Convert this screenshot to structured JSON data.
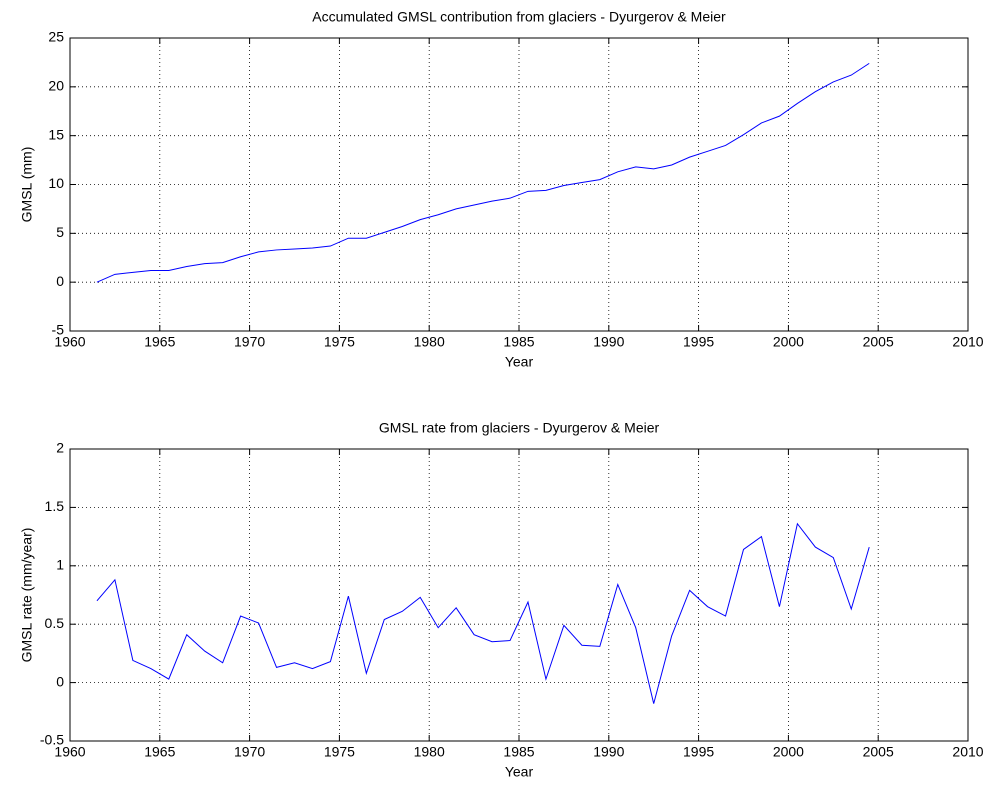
{
  "chart_data": [
    {
      "type": "line",
      "title": "Accumulated GMSL contribution from glaciers - Dyurgerov & Meier",
      "xlabel": "Year",
      "ylabel": "GMSL (mm)",
      "x": [
        1961.5,
        1962.5,
        1963.5,
        1964.5,
        1965.5,
        1966.5,
        1967.5,
        1968.5,
        1969.5,
        1970.5,
        1971.5,
        1972.5,
        1973.5,
        1974.5,
        1975.5,
        1976.5,
        1977.5,
        1978.5,
        1979.5,
        1980.5,
        1981.5,
        1982.5,
        1983.5,
        1984.5,
        1985.5,
        1986.5,
        1987.5,
        1988.5,
        1989.5,
        1990.5,
        1991.5,
        1992.5,
        1993.5,
        1994.5,
        1995.5,
        1996.5,
        1997.5,
        1998.5,
        1999.5,
        2000.5,
        2001.5,
        2002.5,
        2003.5,
        2004.5
      ],
      "series": [
        {
          "color": "#0000ff",
          "values": [
            0,
            0.8,
            1.0,
            1.2,
            1.2,
            1.6,
            1.9,
            2.0,
            2.6,
            3.1,
            3.3,
            3.4,
            3.5,
            3.7,
            4.5,
            4.5,
            5.1,
            5.7,
            6.4,
            6.9,
            7.5,
            7.9,
            8.3,
            8.6,
            9.3,
            9.4,
            9.9,
            10.2,
            10.5,
            11.3,
            11.8,
            11.6,
            12.0,
            12.8,
            13.4,
            14.0,
            15.1,
            16.3,
            17.0,
            18.3,
            19.5,
            20.5,
            21.2,
            22.4
          ]
        }
      ],
      "xlim": [
        1960,
        2010
      ],
      "xticks": [
        1960,
        1965,
        1970,
        1975,
        1980,
        1985,
        1990,
        1995,
        2000,
        2005,
        2010
      ],
      "ylim": [
        -5,
        25
      ],
      "yticks": [
        -5,
        0,
        5,
        10,
        15,
        20,
        25
      ],
      "grid": true
    },
    {
      "type": "line",
      "title": "GMSL rate from glaciers - Dyurgerov & Meier",
      "xlabel": "Year",
      "ylabel": "GMSL rate (mm/year)",
      "x": [
        1961.5,
        1962.5,
        1963.5,
        1964.5,
        1965.5,
        1966.5,
        1967.5,
        1968.5,
        1969.5,
        1970.5,
        1971.5,
        1972.5,
        1973.5,
        1974.5,
        1975.5,
        1976.5,
        1977.5,
        1978.5,
        1979.5,
        1980.5,
        1981.5,
        1982.5,
        1983.5,
        1984.5,
        1985.5,
        1986.5,
        1987.5,
        1988.5,
        1989.5,
        1990.5,
        1991.5,
        1992.5,
        1993.5,
        1994.5,
        1995.5,
        1996.5,
        1997.5,
        1998.5,
        1999.5,
        2000.5,
        2001.5,
        2002.5,
        2003.5,
        2004.5
      ],
      "series": [
        {
          "color": "#0000ff",
          "values": [
            0.7,
            0.88,
            0.19,
            0.12,
            0.03,
            0.41,
            0.27,
            0.17,
            0.57,
            0.51,
            0.13,
            0.17,
            0.12,
            0.18,
            0.74,
            0.08,
            0.54,
            0.61,
            0.73,
            0.47,
            0.64,
            0.41,
            0.35,
            0.36,
            0.69,
            0.03,
            0.49,
            0.32,
            0.31,
            0.84,
            0.47,
            -0.18,
            0.4,
            0.79,
            0.65,
            0.57,
            1.14,
            1.25,
            0.65,
            1.36,
            1.16,
            1.07,
            0.63,
            1.16
          ]
        }
      ],
      "xlim": [
        1960,
        2010
      ],
      "xticks": [
        1960,
        1965,
        1970,
        1975,
        1980,
        1985,
        1990,
        1995,
        2000,
        2005,
        2010
      ],
      "ylim": [
        -0.5,
        2
      ],
      "yticks": [
        -0.5,
        0,
        0.5,
        1,
        1.5,
        2
      ],
      "grid": true
    }
  ]
}
